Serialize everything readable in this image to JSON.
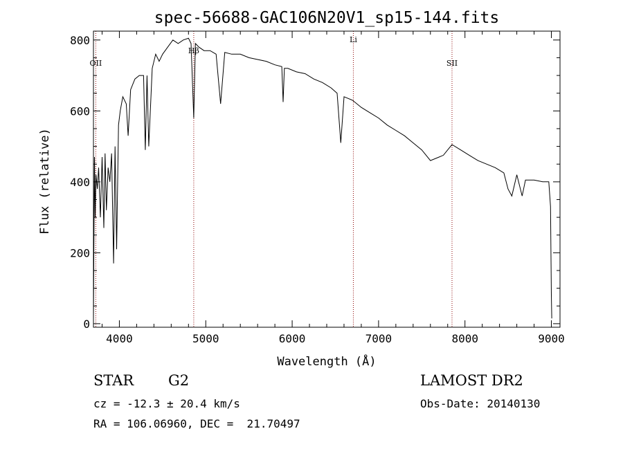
{
  "chart_data": {
    "type": "line",
    "title": "spec-56688-GAC106N20V1_sp15-144.fits",
    "xlabel": "Wavelength (Å)",
    "ylabel": "Flux (relative)",
    "xlim": [
      3700,
      9100
    ],
    "ylim": [
      -10,
      825
    ],
    "xticks": [
      4000,
      5000,
      6000,
      7000,
      8000,
      9000
    ],
    "yticks": [
      0,
      200,
      400,
      600,
      800
    ],
    "series": [
      {
        "name": "spectrum",
        "x": [
          3700,
          3705,
          3712,
          3720,
          3730,
          3745,
          3760,
          3780,
          3800,
          3820,
          3835,
          3850,
          3870,
          3890,
          3910,
          3933,
          3950,
          3968,
          3990,
          4010,
          4040,
          4080,
          4101,
          4130,
          4180,
          4230,
          4280,
          4300,
          4320,
          4340,
          4380,
          4420,
          4460,
          4500,
          4560,
          4620,
          4680,
          4740,
          4800,
          4830,
          4861,
          4880,
          4920,
          4980,
          5050,
          5120,
          5172,
          5220,
          5300,
          5400,
          5500,
          5600,
          5700,
          5800,
          5880,
          5895,
          5910,
          5950,
          6050,
          6150,
          6250,
          6350,
          6450,
          6520,
          6563,
          6600,
          6700,
          6800,
          6900,
          7000,
          7100,
          7200,
          7300,
          7400,
          7500,
          7600,
          7700,
          7750,
          7800,
          7850,
          7950,
          8050,
          8150,
          8250,
          8350,
          8450,
          8498,
          8542,
          8600,
          8662,
          8700,
          8800,
          8900,
          8970,
          8990,
          9000,
          9005
        ],
        "y": [
          10,
          210,
          470,
          300,
          420,
          380,
          440,
          300,
          470,
          270,
          480,
          320,
          440,
          400,
          480,
          170,
          500,
          210,
          560,
          600,
          640,
          620,
          530,
          660,
          690,
          700,
          700,
          490,
          700,
          500,
          720,
          760,
          740,
          760,
          780,
          800,
          790,
          800,
          805,
          790,
          580,
          790,
          780,
          770,
          770,
          760,
          620,
          765,
          760,
          760,
          750,
          745,
          740,
          730,
          725,
          625,
          720,
          720,
          710,
          705,
          690,
          680,
          665,
          650,
          510,
          640,
          630,
          610,
          595,
          580,
          560,
          545,
          530,
          510,
          490,
          460,
          470,
          475,
          490,
          505,
          490,
          475,
          460,
          450,
          440,
          425,
          380,
          360,
          420,
          360,
          405,
          405,
          400,
          400,
          330,
          80,
          15
        ]
      }
    ],
    "lines": [
      {
        "label": "OII",
        "x": 3727
      },
      {
        "label": "Hβ",
        "x": 4861
      },
      {
        "label": "Li",
        "x": 6708
      },
      {
        "label": "SII",
        "x": 7850
      }
    ]
  },
  "footer": {
    "object_class": "STAR",
    "subclass": "G2",
    "redshift": "cz = -12.3 ± 20.4 km/s",
    "coords": "RA = 106.06960, DEC =  21.70497",
    "survey": "LAMOST DR2",
    "obs_date": "Obs-Date: 20140130"
  },
  "colors": {
    "axis": "#000000",
    "line": "#000000",
    "marker": "#8b0000"
  }
}
